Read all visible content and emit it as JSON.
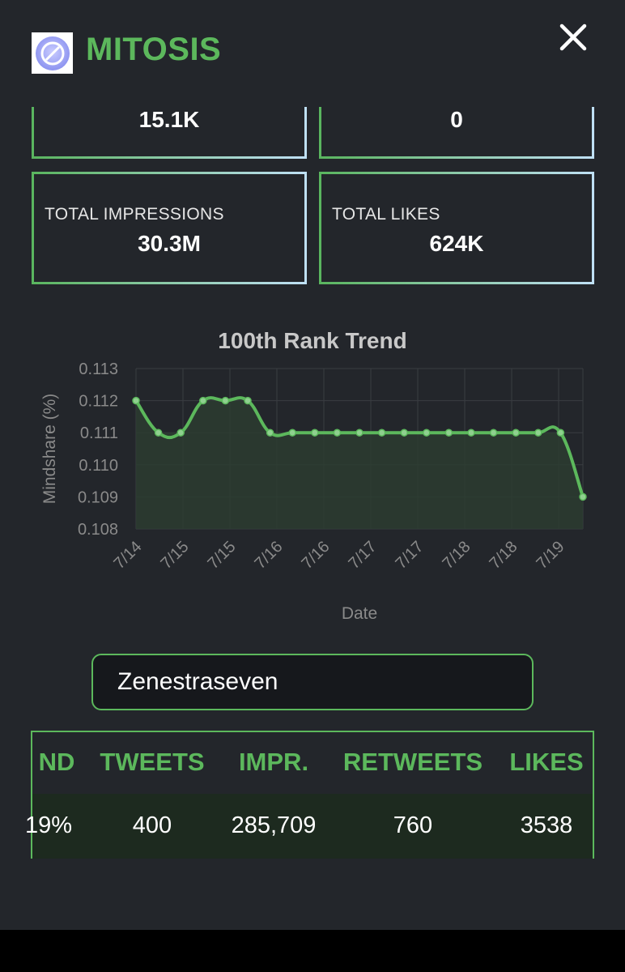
{
  "header": {
    "title": "MITOSIS",
    "logo_icon": "mitosis-logo-icon",
    "close_icon": "close-icon"
  },
  "stats": {
    "top_left_value": "15.1K",
    "top_right_value": "0",
    "impressions_label": "TOTAL IMPRESSIONS",
    "impressions_value": "30.3M",
    "likes_label": "TOTAL LIKES",
    "likes_value": "624K"
  },
  "chart_data": {
    "type": "line",
    "title": "100th Rank Trend",
    "xlabel": "Date",
    "ylabel": "Mindshare (%)",
    "ylim": [
      0.108,
      0.113
    ],
    "y_ticks": [
      "0.113",
      "0.112",
      "0.111",
      "0.110",
      "0.109",
      "0.108"
    ],
    "x_ticks": [
      "7/14",
      "7/15",
      "7/15",
      "7/16",
      "7/16",
      "7/17",
      "7/17",
      "7/18",
      "7/18",
      "7/19"
    ],
    "values": [
      0.112,
      0.111,
      0.111,
      0.112,
      0.112,
      0.112,
      0.111,
      0.111,
      0.111,
      0.111,
      0.111,
      0.111,
      0.111,
      0.111,
      0.111,
      0.111,
      0.111,
      0.111,
      0.111,
      0.111,
      0.109
    ],
    "grid": true,
    "line_color": "#5cb85c",
    "fill_color": "#2c3c30"
  },
  "search": {
    "value": "Zenestraseven"
  },
  "table": {
    "headers": [
      "ND",
      "TWEETS",
      "IMPR.",
      "RETWEETS",
      "LIKES"
    ],
    "row": [
      "19%",
      "400",
      "285,709",
      "760",
      "3538"
    ]
  }
}
